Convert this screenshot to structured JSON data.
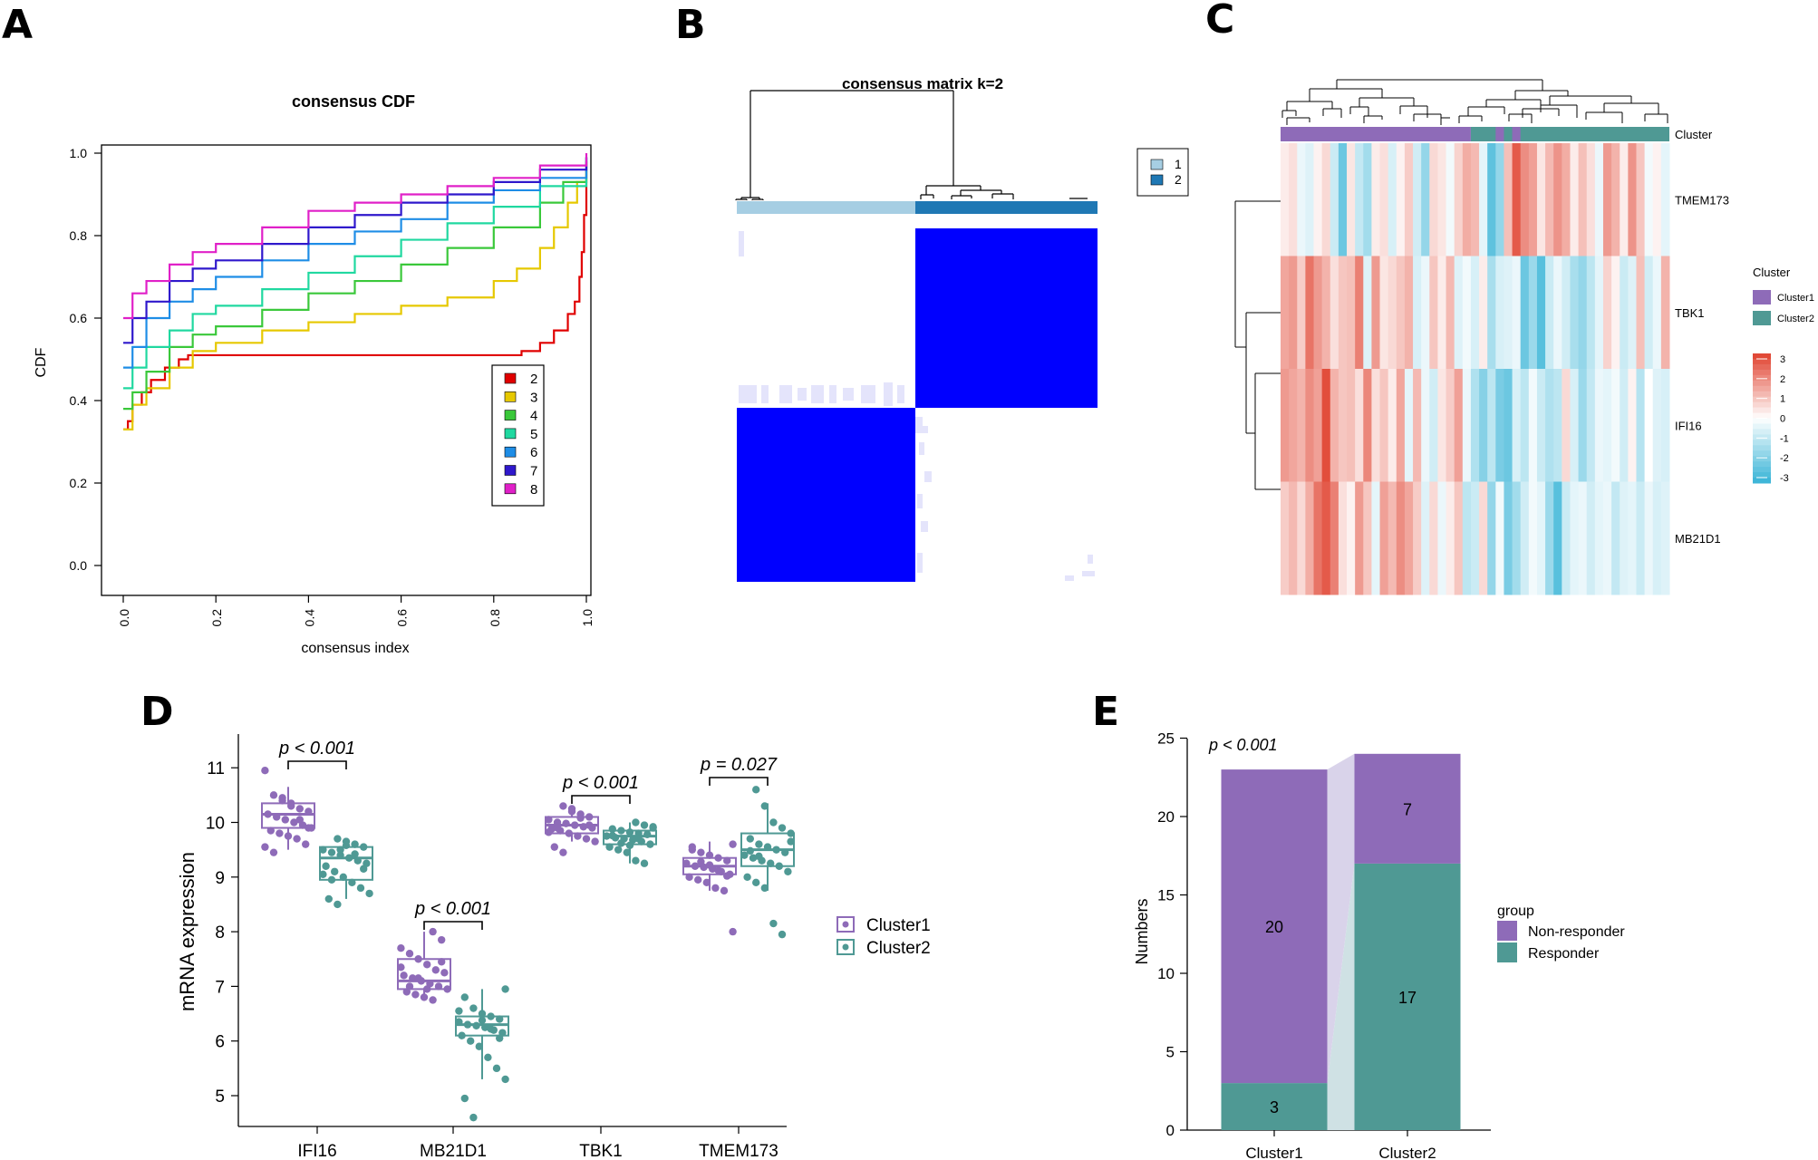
{
  "panels": {
    "A": "A",
    "B": "B",
    "C": "C",
    "D": "D",
    "E": "E"
  },
  "colors": {
    "cluster1": "#8e6bb8",
    "cluster2": "#4f9994",
    "matrix_blue": "#0000ff",
    "matrix_light": "#e4e4fb",
    "bar_light": "#a6cee3",
    "bar_dark": "#1f78b4",
    "hm_red": "#e0412e",
    "hm_blue": "#37b3d6",
    "flow": "#d9d3ea",
    "flow2": "#cfe1e4"
  },
  "chart_data": [
    {
      "id": "A",
      "type": "line",
      "title": "consensus CDF",
      "xlabel": "consensus index",
      "ylabel": "CDF",
      "xlim": [
        0,
        1
      ],
      "ylim": [
        0,
        1
      ],
      "xticks": [
        "0.0",
        "0.2",
        "0.4",
        "0.6",
        "0.8",
        "1.0"
      ],
      "yticks": [
        "0.0",
        "0.2",
        "0.4",
        "0.6",
        "0.8",
        "1.0"
      ],
      "legend": {
        "position": "bottom-right",
        "entries": [
          "2",
          "3",
          "4",
          "5",
          "6",
          "7",
          "8"
        ]
      },
      "series": [
        {
          "name": "2",
          "color": "#e00000",
          "x": [
            0.0,
            0.01,
            0.02,
            0.04,
            0.06,
            0.09,
            0.12,
            0.14,
            0.2,
            0.4,
            0.6,
            0.8,
            0.86,
            0.9,
            0.93,
            0.96,
            0.975,
            0.985,
            0.99,
            0.995,
            1.0
          ],
          "y": [
            0.33,
            0.35,
            0.39,
            0.42,
            0.45,
            0.48,
            0.5,
            0.51,
            0.51,
            0.51,
            0.51,
            0.51,
            0.52,
            0.54,
            0.57,
            0.61,
            0.64,
            0.7,
            0.76,
            0.85,
            0.98
          ]
        },
        {
          "name": "3",
          "color": "#e6c800",
          "x": [
            0.0,
            0.02,
            0.05,
            0.1,
            0.15,
            0.2,
            0.3,
            0.4,
            0.5,
            0.6,
            0.7,
            0.8,
            0.85,
            0.9,
            0.93,
            0.96,
            0.98,
            1.0
          ],
          "y": [
            0.33,
            0.39,
            0.43,
            0.48,
            0.52,
            0.54,
            0.57,
            0.59,
            0.61,
            0.63,
            0.65,
            0.69,
            0.72,
            0.77,
            0.82,
            0.88,
            0.93,
            0.98
          ]
        },
        {
          "name": "4",
          "color": "#3ac83a",
          "x": [
            0.0,
            0.02,
            0.05,
            0.1,
            0.15,
            0.2,
            0.3,
            0.4,
            0.5,
            0.6,
            0.7,
            0.8,
            0.9,
            0.95,
            1.0
          ],
          "y": [
            0.38,
            0.42,
            0.47,
            0.53,
            0.56,
            0.58,
            0.62,
            0.66,
            0.69,
            0.73,
            0.77,
            0.82,
            0.88,
            0.93,
            0.99
          ]
        },
        {
          "name": "5",
          "color": "#20d8a0",
          "x": [
            0.0,
            0.02,
            0.05,
            0.1,
            0.15,
            0.2,
            0.3,
            0.4,
            0.5,
            0.6,
            0.7,
            0.8,
            0.9,
            1.0
          ],
          "y": [
            0.43,
            0.48,
            0.53,
            0.57,
            0.61,
            0.63,
            0.67,
            0.71,
            0.75,
            0.79,
            0.83,
            0.87,
            0.92,
            0.99
          ]
        },
        {
          "name": "6",
          "color": "#1e8de6",
          "x": [
            0.0,
            0.02,
            0.05,
            0.1,
            0.15,
            0.2,
            0.3,
            0.4,
            0.5,
            0.6,
            0.7,
            0.8,
            0.9,
            1.0
          ],
          "y": [
            0.48,
            0.53,
            0.6,
            0.64,
            0.67,
            0.7,
            0.74,
            0.78,
            0.81,
            0.84,
            0.88,
            0.91,
            0.94,
            0.99
          ]
        },
        {
          "name": "7",
          "color": "#2f18cc",
          "x": [
            0.0,
            0.02,
            0.05,
            0.1,
            0.15,
            0.2,
            0.3,
            0.4,
            0.5,
            0.6,
            0.7,
            0.8,
            0.9,
            1.0
          ],
          "y": [
            0.54,
            0.6,
            0.64,
            0.69,
            0.72,
            0.74,
            0.78,
            0.82,
            0.85,
            0.88,
            0.9,
            0.93,
            0.96,
            0.99
          ]
        },
        {
          "name": "8",
          "color": "#e020c8",
          "x": [
            0.0,
            0.02,
            0.05,
            0.1,
            0.15,
            0.2,
            0.3,
            0.4,
            0.5,
            0.6,
            0.7,
            0.8,
            0.9,
            1.0
          ],
          "y": [
            0.6,
            0.66,
            0.69,
            0.73,
            0.76,
            0.78,
            0.82,
            0.86,
            0.88,
            0.9,
            0.92,
            0.94,
            0.97,
            1.0
          ]
        }
      ]
    },
    {
      "id": "B",
      "type": "heatmap",
      "title": "consensus matrix k=2",
      "legend": {
        "position": "top-right",
        "entries": [
          "1",
          "2"
        ]
      },
      "clusters": [
        {
          "name": "1",
          "size": 23
        },
        {
          "name": "2",
          "size": 24
        }
      ],
      "within_cluster_consensus": 1.0,
      "between_cluster_consensus": 0.0
    },
    {
      "id": "C",
      "type": "heatmap",
      "rows": [
        "TMEM173",
        "TBK1",
        "IFI16",
        "MB21D1"
      ],
      "annotation_label": "Cluster",
      "legend_title": "Cluster",
      "legend_entries": [
        "Cluster1",
        "Cluster2"
      ],
      "scale_ticks": [
        "3",
        "2",
        "1",
        "0",
        "-1",
        "-2",
        "-3"
      ],
      "scale_range": [
        -3,
        3
      ],
      "n_samples": 47,
      "cluster_sizes": [
        23,
        24
      ],
      "values": [
        [
          0.3,
          0.5,
          -0.3,
          -0.5,
          0.2,
          0.6,
          -0.8,
          -2.2,
          0.4,
          -0.9,
          -1.4,
          0.3,
          0.5,
          -0.6,
          0.2,
          0.8,
          -0.7,
          -1.6,
          0.6,
          0.4,
          -0.2,
          0.7,
          1.3,
          1.1,
          -0.4,
          -2.4,
          -1.6,
          1.0,
          2.6,
          1.8,
          1.5,
          0.4,
          1.1,
          1.7,
          1.3,
          0.3,
          1.0,
          0.5,
          -0.3,
          1.6,
          1.2,
          0.3,
          1.7,
          0.9,
          -0.2,
          0.2,
          -0.4
        ],
        [
          1.4,
          1.6,
          0.8,
          2.2,
          1.6,
          1.2,
          0.5,
          0.9,
          1.0,
          2.0,
          -0.5,
          1.6,
          0.4,
          0.6,
          0.9,
          1.2,
          -0.6,
          -0.3,
          0.9,
          0.3,
          1.1,
          -0.5,
          -0.2,
          -0.6,
          0.3,
          -1.3,
          -0.6,
          -0.5,
          -0.3,
          -2.2,
          -1.5,
          -2.5,
          -0.8,
          -0.3,
          -0.7,
          -1.3,
          -1.6,
          -1.0,
          -0.4,
          0.7,
          0.2,
          -0.8,
          -0.5,
          1.0,
          -0.7,
          -0.3,
          1.2
        ],
        [
          1.6,
          1.4,
          1.2,
          1.8,
          1.5,
          2.8,
          1.2,
          0.9,
          1.0,
          0.5,
          1.9,
          0.5,
          0.9,
          0.3,
          1.4,
          -0.4,
          1.1,
          -0.3,
          -0.7,
          0.4,
          0.8,
          1.5,
          -0.3,
          -1.2,
          -1.8,
          -1.0,
          -2.0,
          -2.2,
          -0.6,
          -1.0,
          -0.2,
          -0.8,
          -1.2,
          -1.0,
          0.6,
          -0.6,
          -1.5,
          -0.9,
          -0.3,
          -0.4,
          -0.2,
          -0.7,
          0.2,
          -1.1,
          0.0,
          -0.5,
          -0.6
        ],
        [
          0.8,
          1.1,
          0.6,
          1.3,
          2.2,
          2.6,
          2.0,
          0.5,
          0.2,
          1.6,
          0.9,
          -0.4,
          1.5,
          1.1,
          1.8,
          1.4,
          0.8,
          -0.5,
          0.6,
          -0.3,
          0.3,
          0.9,
          -1.0,
          -0.8,
          0.6,
          -1.6,
          -0.2,
          -2.0,
          -1.4,
          -0.7,
          -0.2,
          -0.4,
          -1.5,
          -2.5,
          -0.8,
          -0.4,
          -0.3,
          -0.7,
          -0.4,
          -0.3,
          -0.9,
          -0.5,
          -0.4,
          -0.8,
          -0.3,
          -0.6,
          -0.5
        ]
      ]
    },
    {
      "id": "D",
      "type": "scatter",
      "subtype": "boxplot",
      "ylabel": "mRNA expression",
      "xlabel": "",
      "ylim": [
        4.5,
        11.4
      ],
      "yticks": [
        5,
        6,
        7,
        8,
        9,
        10,
        11
      ],
      "categories": [
        "IFI16",
        "MB21D1",
        "TBK1",
        "TMEM173"
      ],
      "legend": {
        "position": "right",
        "entries": [
          "Cluster1",
          "Cluster2"
        ]
      },
      "pvalues": [
        {
          "category": "IFI16",
          "label": "p < 0.001"
        },
        {
          "category": "MB21D1",
          "label": "p < 0.001"
        },
        {
          "category": "TBK1",
          "label": "p < 0.001"
        },
        {
          "category": "TMEM173",
          "label": "p = 0.027"
        }
      ],
      "series": [
        {
          "name": "Cluster1",
          "boxes": [
            {
              "min": 9.5,
              "q1": 9.9,
              "median": 10.15,
              "q3": 10.35,
              "max": 10.65
            },
            {
              "min": 6.75,
              "q1": 6.95,
              "median": 7.1,
              "q3": 7.5,
              "max": 8.0
            },
            {
              "min": 9.65,
              "q1": 9.8,
              "median": 9.95,
              "q3": 10.1,
              "max": 10.3
            },
            {
              "min": 8.75,
              "q1": 9.05,
              "median": 9.2,
              "q3": 9.35,
              "max": 9.65
            }
          ],
          "points": [
            [
              10.95,
              10.5,
              10.45,
              10.3,
              10.25,
              10.2,
              10.15,
              10.1,
              10.05,
              10.0,
              9.95,
              9.9,
              9.85,
              9.8,
              9.75,
              9.7,
              9.6,
              9.55,
              9.45,
              10.4,
              10.35,
              10.05,
              9.9
            ],
            [
              8.0,
              7.85,
              7.7,
              7.6,
              7.5,
              7.4,
              7.3,
              7.25,
              7.2,
              7.15,
              7.1,
              7.05,
              7.0,
              6.95,
              6.9,
              6.85,
              6.8,
              6.75,
              7.45,
              7.35,
              7.0,
              7.15,
              6.95
            ],
            [
              10.3,
              10.2,
              10.15,
              10.1,
              10.05,
              10.0,
              9.98,
              9.95,
              9.92,
              9.9,
              9.88,
              9.85,
              9.8,
              9.75,
              9.7,
              9.65,
              9.55,
              9.45,
              10.25,
              10.08,
              9.95,
              9.82,
              9.9
            ],
            [
              9.6,
              9.5,
              9.45,
              9.4,
              9.35,
              9.3,
              9.25,
              9.2,
              9.18,
              9.15,
              9.1,
              9.05,
              9.0,
              8.95,
              8.9,
              8.8,
              8.75,
              8.0,
              9.55,
              9.28,
              9.22,
              9.12,
              9.02
            ]
          ]
        },
        {
          "name": "Cluster2",
          "boxes": [
            {
              "min": 8.6,
              "q1": 8.95,
              "median": 9.35,
              "q3": 9.55,
              "max": 9.7
            },
            {
              "min": 5.3,
              "q1": 6.1,
              "median": 6.3,
              "q3": 6.45,
              "max": 6.95
            },
            {
              "min": 9.25,
              "q1": 9.6,
              "median": 9.75,
              "q3": 9.85,
              "max": 10.0
            },
            {
              "min": 8.75,
              "q1": 9.2,
              "median": 9.5,
              "q3": 9.8,
              "max": 10.35
            }
          ],
          "points": [
            [
              9.7,
              9.65,
              9.6,
              9.55,
              9.5,
              9.45,
              9.4,
              9.35,
              9.3,
              9.25,
              9.2,
              9.1,
              9.0,
              8.9,
              8.8,
              8.7,
              8.6,
              8.5,
              9.58,
              9.42,
              9.15,
              9.05,
              8.95,
              9.5
            ],
            [
              6.95,
              6.8,
              6.6,
              6.5,
              6.45,
              6.4,
              6.35,
              6.3,
              6.28,
              6.25,
              6.2,
              6.15,
              6.1,
              6.0,
              5.9,
              5.7,
              5.5,
              5.3,
              4.95,
              4.6,
              6.38,
              6.22,
              6.05,
              6.55
            ],
            [
              10.0,
              9.95,
              9.9,
              9.88,
              9.85,
              9.82,
              9.8,
              9.78,
              9.75,
              9.72,
              9.7,
              9.68,
              9.65,
              9.6,
              9.55,
              9.5,
              9.45,
              9.3,
              9.25,
              9.92,
              9.76,
              9.62,
              9.58,
              9.7
            ],
            [
              10.6,
              10.3,
              10.0,
              9.9,
              9.8,
              9.7,
              9.6,
              9.55,
              9.5,
              9.45,
              9.4,
              9.35,
              9.3,
              9.25,
              9.2,
              9.1,
              9.0,
              8.9,
              8.8,
              8.15,
              7.95,
              9.65,
              9.48,
              9.38
            ]
          ]
        }
      ]
    },
    {
      "id": "E",
      "type": "bar",
      "subtype": "stacked",
      "ylabel": "Numbers",
      "xlabel": "",
      "ylim": [
        0,
        25
      ],
      "yticks": [
        0,
        5,
        10,
        15,
        20,
        25
      ],
      "categories": [
        "Cluster1",
        "Cluster2"
      ],
      "annotation": "p < 0.001",
      "legend": {
        "position": "right",
        "title": "group",
        "entries": [
          "Non-responder",
          "Responder"
        ]
      },
      "series": [
        {
          "name": "Responder",
          "values": [
            3,
            17
          ]
        },
        {
          "name": "Non-responder",
          "values": [
            20,
            7
          ]
        }
      ]
    }
  ]
}
